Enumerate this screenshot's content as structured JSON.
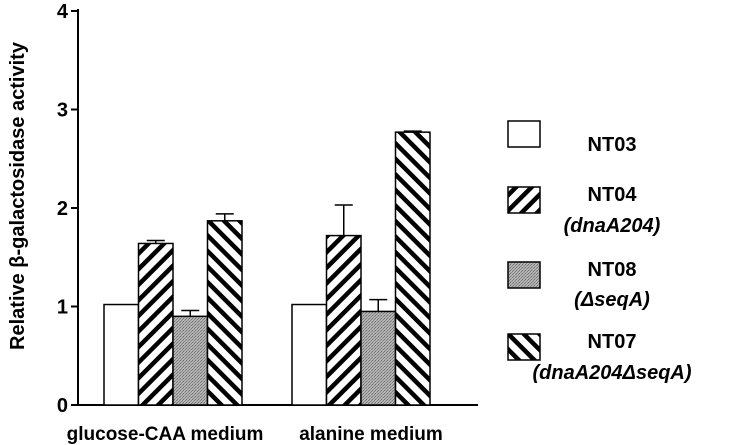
{
  "chart_data": {
    "type": "bar",
    "ylabel": "Relative β-galactosidase activity",
    "ylim": [
      0,
      4
    ],
    "yticks": [
      "0",
      "1",
      "2",
      "3",
      "4"
    ],
    "categories": [
      "glucose-CAA medium",
      "alanine medium"
    ],
    "series": [
      {
        "name": "NT03",
        "name_line2": "",
        "pattern": "open",
        "values": [
          1.02,
          1.02
        ],
        "errors": [
          0,
          0
        ]
      },
      {
        "name": "NT04",
        "name_line2": "(dnaA204)",
        "pattern": "diag-right",
        "values": [
          1.64,
          1.72
        ],
        "errors": [
          0.03,
          0.31
        ]
      },
      {
        "name": "NT08",
        "name_line2": "(ΔseqA)",
        "pattern": "stipple",
        "values": [
          0.9,
          0.95
        ],
        "errors": [
          0.06,
          0.12
        ]
      },
      {
        "name": "NT07",
        "name_line2": "(dnaA204ΔseqA)",
        "pattern": "diag-left",
        "values": [
          1.87,
          2.77
        ],
        "errors": [
          0.07,
          0.01
        ]
      }
    ],
    "grid": false,
    "legend_position": "right"
  }
}
